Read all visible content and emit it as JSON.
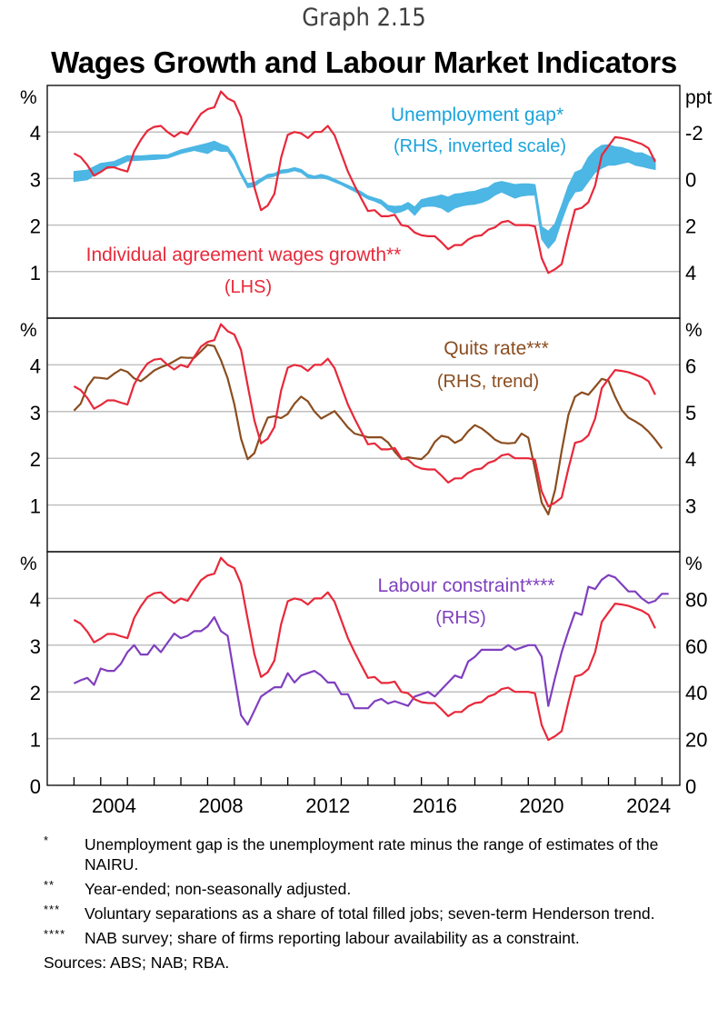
{
  "header": {
    "graph_number": "Graph 2.15",
    "title": "Wages Growth and Labour Market Indicators"
  },
  "chart_data": {
    "type": "line",
    "title": "Wages Growth and Labour Market Indicators",
    "x_axis": {
      "range": [
        2002.0,
        2025.67
      ],
      "tick_years": [
        2003,
        2004,
        2005,
        2006,
        2007,
        2008,
        2009,
        2010,
        2011,
        2012,
        2013,
        2014,
        2015,
        2016,
        2017,
        2018,
        2019,
        2020,
        2021,
        2022,
        2023,
        2024,
        2025
      ],
      "labels": [
        "2004",
        "2008",
        "2012",
        "2016",
        "2020",
        "2024"
      ],
      "label_years": [
        2004,
        2008,
        2012,
        2016,
        2020,
        2024
      ]
    },
    "x_start": 2003.0,
    "x_step": 0.25,
    "colors": {
      "wages": "#e8283a",
      "gap": "#4cb6e4",
      "quits": "#8b4d1f",
      "labour": "#7f3fbf",
      "grid": "#c0c0c0",
      "axis": "#000000"
    },
    "wages_series": {
      "name": "Individual agreement wages growth**",
      "axis": "LHS",
      "unit": "%",
      "values": [
        3.54,
        3.46,
        3.29,
        3.06,
        3.14,
        3.24,
        3.24,
        3.19,
        3.15,
        3.58,
        3.83,
        4.03,
        4.11,
        4.13,
        4.0,
        3.9,
        4.0,
        3.95,
        4.17,
        4.39,
        4.49,
        4.53,
        4.87,
        4.72,
        4.65,
        4.32,
        3.56,
        2.81,
        2.32,
        2.42,
        2.67,
        3.45,
        3.94,
        4.0,
        3.97,
        3.87,
        4.0,
        4.0,
        4.13,
        3.93,
        3.54,
        3.15,
        2.85,
        2.57,
        2.3,
        2.32,
        2.19,
        2.19,
        2.22,
        2.0,
        1.97,
        1.84,
        1.78,
        1.76,
        1.76,
        1.63,
        1.48,
        1.57,
        1.57,
        1.69,
        1.76,
        1.78,
        1.9,
        1.95,
        2.06,
        2.09,
        2.0,
        2.0,
        2.0,
        1.97,
        1.29,
        0.97,
        1.05,
        1.16,
        1.78,
        2.33,
        2.37,
        2.49,
        2.85,
        3.5,
        3.7,
        3.89,
        3.87,
        3.84,
        3.79,
        3.74,
        3.65,
        3.36
      ]
    },
    "panels": [
      {
        "id": "unemployment-gap",
        "lhs": {
          "unit": "%",
          "range": [
            0,
            5
          ],
          "ticks": [
            1,
            2,
            3,
            4
          ],
          "tick_labels": [
            "1",
            "2",
            "3",
            "4"
          ]
        },
        "rhs": {
          "unit": "ppt",
          "inverted": true,
          "range": [
            -4,
            6
          ],
          "ticks": [
            -2,
            0,
            2,
            4
          ],
          "tick_labels": [
            "-2",
            "0",
            "2",
            "4"
          ]
        },
        "series_label": "Unemployment gap*",
        "series_sublabel": "(RHS, inverted scale)",
        "wages_label": "Individual agreement wages growth**",
        "wages_sublabel": "(LHS)",
        "band": {
          "name": "Unemployment gap*",
          "type": "range",
          "points": [
            {
              "i": 0,
              "lo": -0.3,
              "hi": 0.13
            },
            {
              "i": 2,
              "lo": -0.36,
              "hi": 0.05
            },
            {
              "i": 4,
              "lo": -0.65,
              "hi": -0.36
            },
            {
              "i": 6,
              "lo": -0.73,
              "hi": -0.49
            },
            {
              "i": 8,
              "lo": -0.98,
              "hi": -0.75
            },
            {
              "i": 10,
              "lo": -0.97,
              "hi": -0.79
            },
            {
              "i": 12,
              "lo": -1.01,
              "hi": -0.82
            },
            {
              "i": 14,
              "lo": -1.01,
              "hi": -0.88
            },
            {
              "i": 16,
              "lo": -1.23,
              "hi": -1.08
            },
            {
              "i": 18,
              "lo": -1.37,
              "hi": -1.21
            },
            {
              "i": 20,
              "lo": -1.51,
              "hi": -1.08
            },
            {
              "i": 21,
              "lo": -1.6,
              "hi": -1.25
            },
            {
              "i": 22,
              "lo": -1.47,
              "hi": -1.17
            },
            {
              "i": 23,
              "lo": -1.37,
              "hi": -1.17
            },
            {
              "i": 24,
              "lo": -0.95,
              "hi": -0.75
            },
            {
              "i": 25,
              "lo": -0.3,
              "hi": -0.13
            },
            {
              "i": 26,
              "lo": 0.22,
              "hi": 0.39
            },
            {
              "i": 27,
              "lo": 0.17,
              "hi": 0.34
            },
            {
              "i": 28,
              "lo": 0.0,
              "hi": 0.13
            },
            {
              "i": 29,
              "lo": -0.17,
              "hi": -0.04
            },
            {
              "i": 30,
              "lo": -0.21,
              "hi": -0.1
            },
            {
              "i": 31,
              "lo": -0.36,
              "hi": -0.23
            },
            {
              "i": 32,
              "lo": -0.39,
              "hi": -0.26
            },
            {
              "i": 33,
              "lo": -0.47,
              "hi": -0.34
            },
            {
              "i": 34,
              "lo": -0.39,
              "hi": -0.26
            },
            {
              "i": 35,
              "lo": -0.17,
              "hi": -0.04
            },
            {
              "i": 36,
              "lo": -0.1,
              "hi": 0.0
            },
            {
              "i": 37,
              "lo": -0.17,
              "hi": -0.04
            },
            {
              "i": 38,
              "lo": -0.1,
              "hi": 0.03
            },
            {
              "i": 40,
              "lo": 0.16,
              "hi": 0.26
            },
            {
              "i": 42,
              "lo": 0.42,
              "hi": 0.55
            },
            {
              "i": 43,
              "lo": 0.58,
              "hi": 0.71
            },
            {
              "i": 44,
              "lo": 0.75,
              "hi": 0.88
            },
            {
              "i": 45,
              "lo": 0.84,
              "hi": 0.97
            },
            {
              "i": 46,
              "lo": 0.93,
              "hi": 1.1
            },
            {
              "i": 47,
              "lo": 1.16,
              "hi": 1.36
            },
            {
              "i": 48,
              "lo": 1.2,
              "hi": 1.49
            },
            {
              "i": 49,
              "lo": 1.18,
              "hi": 1.42
            },
            {
              "i": 50,
              "lo": 1.03,
              "hi": 1.29
            },
            {
              "i": 51,
              "lo": 1.23,
              "hi": 1.58
            },
            {
              "i": 52,
              "lo": 0.91,
              "hi": 1.23
            },
            {
              "i": 53,
              "lo": 0.84,
              "hi": 1.18
            },
            {
              "i": 54,
              "lo": 0.78,
              "hi": 1.19
            },
            {
              "i": 55,
              "lo": 0.71,
              "hi": 1.27
            },
            {
              "i": 56,
              "lo": 0.8,
              "hi": 1.45
            },
            {
              "i": 57,
              "lo": 0.67,
              "hi": 1.27
            },
            {
              "i": 58,
              "lo": 0.64,
              "hi": 1.18
            },
            {
              "i": 59,
              "lo": 0.58,
              "hi": 1.13
            },
            {
              "i": 60,
              "lo": 0.55,
              "hi": 1.1
            },
            {
              "i": 61,
              "lo": 0.45,
              "hi": 1.03
            },
            {
              "i": 62,
              "lo": 0.39,
              "hi": 0.91
            },
            {
              "i": 63,
              "lo": 0.19,
              "hi": 0.71
            },
            {
              "i": 64,
              "lo": 0.13,
              "hi": 0.58
            },
            {
              "i": 65,
              "lo": 0.19,
              "hi": 0.71
            },
            {
              "i": 66,
              "lo": 0.26,
              "hi": 0.84
            },
            {
              "i": 67,
              "lo": 0.23,
              "hi": 0.75
            },
            {
              "i": 68,
              "lo": 0.23,
              "hi": 0.71
            },
            {
              "i": 69,
              "lo": 0.26,
              "hi": 0.71
            },
            {
              "i": 70,
              "lo": 2.07,
              "hi": 2.6
            },
            {
              "i": 71,
              "lo": 2.27,
              "hi": 3.0
            },
            {
              "i": 72,
              "lo": 1.94,
              "hi": 2.66
            },
            {
              "i": 73,
              "lo": 1.16,
              "hi": 1.81
            },
            {
              "i": 74,
              "lo": 0.32,
              "hi": 1.03
            },
            {
              "i": 75,
              "lo": -0.26,
              "hi": 0.58
            },
            {
              "i": 76,
              "lo": -0.39,
              "hi": 0.52
            },
            {
              "i": 77,
              "lo": -0.91,
              "hi": 0.13
            },
            {
              "i": 78,
              "lo": -1.23,
              "hi": -0.26
            },
            {
              "i": 79,
              "lo": -1.42,
              "hi": -0.45
            },
            {
              "i": 80,
              "lo": -1.45,
              "hi": -0.58
            },
            {
              "i": 81,
              "lo": -1.36,
              "hi": -0.58
            },
            {
              "i": 82,
              "lo": -1.33,
              "hi": -0.65
            },
            {
              "i": 83,
              "lo": -1.23,
              "hi": -0.71
            },
            {
              "i": 84,
              "lo": -1.1,
              "hi": -0.58
            },
            {
              "i": 85,
              "lo": -1.1,
              "hi": -0.52
            },
            {
              "i": 86,
              "lo": -0.97,
              "hi": -0.45
            },
            {
              "i": 87,
              "lo": -0.84,
              "hi": -0.39
            }
          ]
        }
      },
      {
        "id": "quits-rate",
        "lhs": {
          "unit": "%",
          "range": [
            0,
            5
          ],
          "ticks": [
            1,
            2,
            3,
            4
          ],
          "tick_labels": [
            "1",
            "2",
            "3",
            "4"
          ]
        },
        "rhs": {
          "unit": "%",
          "inverted": false,
          "range": [
            2,
            7
          ],
          "ticks": [
            3,
            4,
            5,
            6
          ],
          "tick_labels": [
            "3",
            "4",
            "5",
            "6"
          ]
        },
        "series_label": "Quits rate***",
        "series_sublabel": "(RHS, trend)",
        "series": {
          "name": "Quits rate***",
          "values": [
            5.02,
            5.17,
            5.53,
            5.73,
            5.72,
            5.7,
            5.81,
            5.9,
            5.85,
            5.71,
            5.65,
            5.76,
            5.88,
            5.95,
            6.0,
            6.08,
            6.16,
            6.15,
            6.15,
            6.29,
            6.43,
            6.4,
            6.1,
            5.71,
            5.16,
            4.42,
            3.98,
            4.11,
            4.53,
            4.87,
            4.9,
            4.86,
            4.95,
            5.17,
            5.32,
            5.22,
            5.0,
            4.85,
            4.93,
            5.01,
            4.84,
            4.66,
            4.53,
            4.49,
            4.45,
            4.45,
            4.45,
            4.34,
            4.14,
            3.98,
            4.02,
            4.0,
            3.98,
            4.11,
            4.35,
            4.48,
            4.45,
            4.33,
            4.4,
            4.58,
            4.71,
            4.64,
            4.53,
            4.4,
            4.33,
            4.32,
            4.33,
            4.53,
            4.44,
            3.77,
            3.05,
            2.8,
            3.32,
            4.16,
            4.93,
            5.32,
            5.41,
            5.36,
            5.53,
            5.7,
            5.66,
            5.32,
            5.03,
            4.87,
            4.79,
            4.7,
            4.57,
            4.4,
            4.21
          ]
        }
      },
      {
        "id": "labour-constraint",
        "lhs": {
          "unit": "%",
          "range": [
            0,
            5
          ],
          "ticks": [
            0,
            1,
            2,
            3,
            4
          ],
          "tick_labels": [
            "0",
            "1",
            "2",
            "3",
            "4"
          ]
        },
        "rhs": {
          "unit": "%",
          "inverted": false,
          "range": [
            0,
            100
          ],
          "ticks": [
            0,
            20,
            40,
            60,
            80
          ],
          "tick_labels": [
            "0",
            "20",
            "40",
            "60",
            "80"
          ]
        },
        "series_label": "Labour constraint****",
        "series_sublabel": "(RHS)",
        "series": {
          "name": "Labour constraint****",
          "values": [
            43.6,
            45,
            46,
            43,
            50,
            49,
            49,
            52,
            57,
            60,
            56,
            56,
            60,
            57,
            61,
            65,
            63,
            64,
            66,
            66,
            68,
            72,
            66,
            64,
            47,
            30,
            26,
            32,
            38,
            40,
            42,
            42,
            48,
            44,
            47,
            48,
            49,
            47,
            44,
            44,
            39,
            39,
            33,
            33,
            33,
            36,
            37,
            35,
            36,
            35,
            34,
            38,
            39,
            40,
            38,
            41,
            44,
            47,
            46,
            53,
            55,
            58,
            58,
            58,
            58,
            60,
            58,
            59,
            60,
            60,
            55,
            34,
            46,
            57,
            66,
            74,
            73,
            85,
            84,
            88,
            90,
            89,
            86,
            83,
            83,
            80,
            78,
            79,
            82,
            82
          ]
        }
      }
    ]
  },
  "footnotes": [
    {
      "marker": "*",
      "text": "Unemployment gap is the unemployment rate minus the range of estimates of the NAIRU."
    },
    {
      "marker": "**",
      "text": "Year-ended; non-seasonally adjusted."
    },
    {
      "marker": "***",
      "text": "Voluntary separations as a share of total filled jobs; seven-term Henderson trend."
    },
    {
      "marker": "****",
      "text": "NAB survey; share of firms reporting labour availability as a constraint."
    }
  ],
  "sources": "Sources: ABS; NAB; RBA."
}
